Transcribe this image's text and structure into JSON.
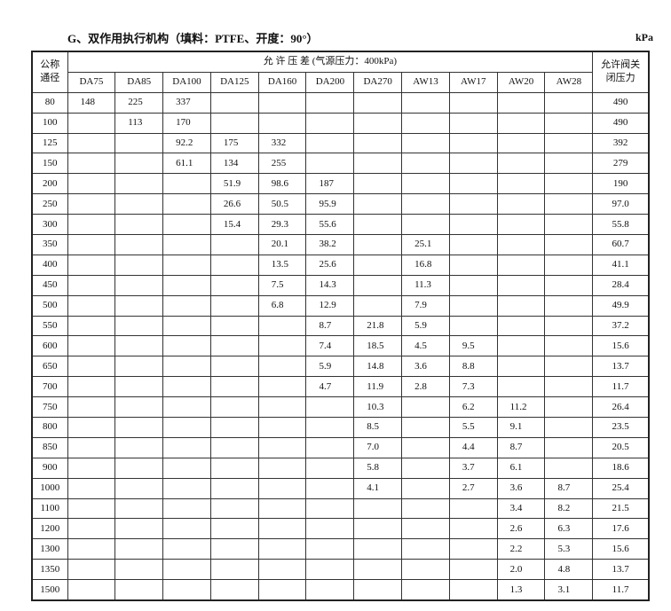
{
  "title": "G、双作用执行机构（填料：PTFE、开度：90°）",
  "unit": "kPa",
  "table": {
    "header_dn": [
      "公称",
      "通径"
    ],
    "header_group": "允 许 压 差 (气源压力：400kPa)",
    "header_close": [
      "允许阀关",
      "闭压力"
    ],
    "models": [
      "DA75",
      "DA85",
      "DA100",
      "DA125",
      "DA160",
      "DA200",
      "DA270",
      "AW13",
      "AW17",
      "AW20",
      "AW28"
    ],
    "rows": [
      {
        "dn": "80",
        "v": [
          "148",
          "225",
          "337",
          "",
          "",
          "",
          "",
          "",
          "",
          "",
          ""
        ],
        "close": "490"
      },
      {
        "dn": "100",
        "v": [
          "",
          "113",
          "170",
          "",
          "",
          "",
          "",
          "",
          "",
          "",
          ""
        ],
        "close": "490"
      },
      {
        "dn": "125",
        "v": [
          "",
          "",
          "92.2",
          "175",
          "332",
          "",
          "",
          "",
          "",
          "",
          ""
        ],
        "close": "392"
      },
      {
        "dn": "150",
        "v": [
          "",
          "",
          "61.1",
          "134",
          "255",
          "",
          "",
          "",
          "",
          "",
          ""
        ],
        "close": "279"
      },
      {
        "dn": "200",
        "v": [
          "",
          "",
          "",
          "51.9",
          "98.6",
          "187",
          "",
          "",
          "",
          "",
          ""
        ],
        "close": "190"
      },
      {
        "dn": "250",
        "v": [
          "",
          "",
          "",
          "26.6",
          "50.5",
          "95.9",
          "",
          "",
          "",
          "",
          ""
        ],
        "close": "97.0"
      },
      {
        "dn": "300",
        "v": [
          "",
          "",
          "",
          "15.4",
          "29.3",
          "55.6",
          "",
          "",
          "",
          "",
          ""
        ],
        "close": "55.8"
      },
      {
        "dn": "350",
        "v": [
          "",
          "",
          "",
          "",
          "20.1",
          "38.2",
          "",
          "25.1",
          "",
          "",
          ""
        ],
        "close": "60.7"
      },
      {
        "dn": "400",
        "v": [
          "",
          "",
          "",
          "",
          "13.5",
          "25.6",
          "",
          "16.8",
          "",
          "",
          ""
        ],
        "close": "41.1"
      },
      {
        "dn": "450",
        "v": [
          "",
          "",
          "",
          "",
          "7.5",
          "14.3",
          "",
          "11.3",
          "",
          "",
          ""
        ],
        "close": "28.4"
      },
      {
        "dn": "500",
        "v": [
          "",
          "",
          "",
          "",
          "6.8",
          "12.9",
          "",
          "7.9",
          "",
          "",
          ""
        ],
        "close": "49.9"
      },
      {
        "dn": "550",
        "v": [
          "",
          "",
          "",
          "",
          "",
          "8.7",
          "21.8",
          "5.9",
          "",
          "",
          ""
        ],
        "close": "37.2"
      },
      {
        "dn": "600",
        "v": [
          "",
          "",
          "",
          "",
          "",
          "7.4",
          "18.5",
          "4.5",
          "9.5",
          "",
          ""
        ],
        "close": "15.6"
      },
      {
        "dn": "650",
        "v": [
          "",
          "",
          "",
          "",
          "",
          "5.9",
          "14.8",
          "3.6",
          "8.8",
          "",
          ""
        ],
        "close": "13.7"
      },
      {
        "dn": "700",
        "v": [
          "",
          "",
          "",
          "",
          "",
          "4.7",
          "11.9",
          "2.8",
          "7.3",
          "",
          ""
        ],
        "close": "11.7"
      },
      {
        "dn": "750",
        "v": [
          "",
          "",
          "",
          "",
          "",
          "",
          "10.3",
          "",
          "6.2",
          "11.2",
          ""
        ],
        "close": "26.4"
      },
      {
        "dn": "800",
        "v": [
          "",
          "",
          "",
          "",
          "",
          "",
          "8.5",
          "",
          "5.5",
          "9.1",
          ""
        ],
        "close": "23.5"
      },
      {
        "dn": "850",
        "v": [
          "",
          "",
          "",
          "",
          "",
          "",
          "7.0",
          "",
          "4.4",
          "8.7",
          ""
        ],
        "close": "20.5"
      },
      {
        "dn": "900",
        "v": [
          "",
          "",
          "",
          "",
          "",
          "",
          "5.8",
          "",
          "3.7",
          "6.1",
          ""
        ],
        "close": "18.6"
      },
      {
        "dn": "1000",
        "v": [
          "",
          "",
          "",
          "",
          "",
          "",
          "4.1",
          "",
          "2.7",
          "3.6",
          "8.7"
        ],
        "close": "25.4"
      },
      {
        "dn": "1100",
        "v": [
          "",
          "",
          "",
          "",
          "",
          "",
          "",
          "",
          "",
          "3.4",
          "8.2"
        ],
        "close": "21.5"
      },
      {
        "dn": "1200",
        "v": [
          "",
          "",
          "",
          "",
          "",
          "",
          "",
          "",
          "",
          "2.6",
          "6.3"
        ],
        "close": "17.6"
      },
      {
        "dn": "1300",
        "v": [
          "",
          "",
          "",
          "",
          "",
          "",
          "",
          "",
          "",
          "2.2",
          "5.3"
        ],
        "close": "15.6"
      },
      {
        "dn": "1350",
        "v": [
          "",
          "",
          "",
          "",
          "",
          "",
          "",
          "",
          "",
          "2.0",
          "4.8"
        ],
        "close": "13.7"
      },
      {
        "dn": "1500",
        "v": [
          "",
          "",
          "",
          "",
          "",
          "",
          "",
          "",
          "",
          "1.3",
          "3.1"
        ],
        "close": "11.7"
      }
    ]
  }
}
